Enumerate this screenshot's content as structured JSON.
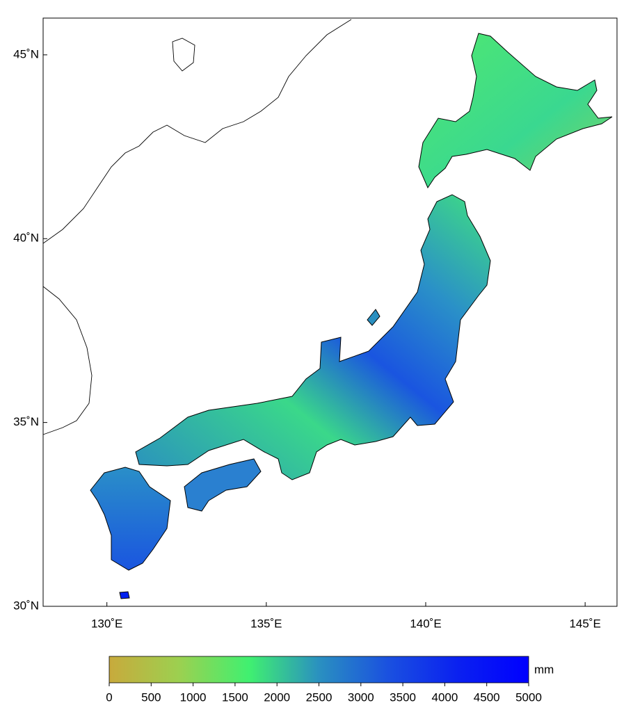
{
  "map": {
    "lonlim": [
      128,
      146
    ],
    "latlim": [
      30,
      46
    ],
    "lon_ticks": [
      {
        "value": 130,
        "label": "130˚E"
      },
      {
        "value": 135,
        "label": "135˚E"
      },
      {
        "value": 140,
        "label": "140˚E"
      },
      {
        "value": 145,
        "label": "145˚E"
      }
    ],
    "lat_ticks": [
      {
        "value": 30,
        "label": "30˚N"
      },
      {
        "value": 35,
        "label": "35˚N"
      },
      {
        "value": 40,
        "label": "40˚N"
      },
      {
        "value": 45,
        "label": "45˚N"
      }
    ]
  },
  "colorbar": {
    "label": "mm",
    "lim": [
      0,
      5000
    ],
    "ticks": [
      0,
      500,
      1000,
      1500,
      2000,
      2500,
      3000,
      3500,
      4000,
      4500,
      5000
    ],
    "colors": [
      "#c8aa3c",
      "#9cd050",
      "#40f070",
      "#2a90c0",
      "#1a50e0",
      "#0a20f0",
      "#0000ff"
    ]
  }
}
